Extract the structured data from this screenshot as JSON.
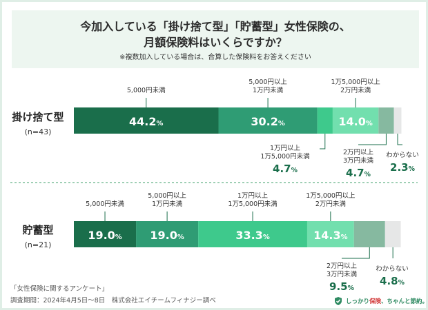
{
  "title": {
    "line1": "今加入している「掛け捨て型」「貯蓄型」女性保険の、",
    "line2": "月額保険料はいくらですか？",
    "note": "※複数加入している場合は、合算した保険料をお答えください"
  },
  "footer": {
    "survey": "「女性保険に関するアンケート」",
    "period": "調査期間：2024年4月5日～8日　株式会社エイチームフィナジー調べ"
  },
  "brand": {
    "pre": "しっかり",
    "highlight": "保険",
    "post": "、ちゃんと節約。"
  },
  "chart_data": {
    "type": "bar",
    "orientation": "horizontal-stacked-100",
    "unit": "%",
    "categories": [
      {
        "name": "掛け捨て型",
        "n": "(n=43)"
      },
      {
        "name": "貯蓄型",
        "n": "(n=21)"
      }
    ],
    "series": [
      {
        "name": [
          "5,000円未満"
        ],
        "color": "#1a6e4b",
        "values": [
          44.2,
          19.0
        ]
      },
      {
        "name": [
          "5,000円以上",
          "1万円未満"
        ],
        "color": "#2f9c74",
        "values": [
          30.2,
          19.0
        ]
      },
      {
        "name": [
          "1万円以上",
          "1万5,000円未満"
        ],
        "color": "#3ec98c",
        "values": [
          4.7,
          33.3
        ]
      },
      {
        "name": [
          "1万5,000円以上",
          "2万円未満"
        ],
        "color": "#72dfae",
        "values": [
          14.0,
          14.3
        ]
      },
      {
        "name": [
          "2万円以上",
          "3万円未満"
        ],
        "color": "#86b9a0",
        "values": [
          4.7,
          9.5
        ]
      },
      {
        "name": [
          "わからない"
        ],
        "color": "#e6e7e7",
        "values": [
          2.3,
          4.8
        ]
      }
    ],
    "xlim": [
      0,
      100
    ]
  }
}
